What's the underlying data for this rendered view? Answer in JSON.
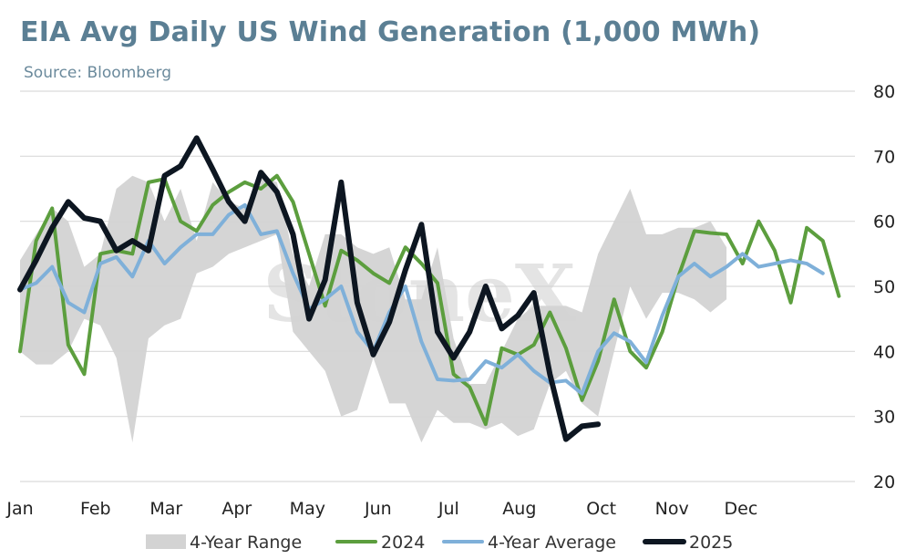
{
  "chart_data": {
    "type": "line",
    "title": "EIA Avg Daily US Wind Generation (1,000 MWh)",
    "subtitle": "Source: Bloomberg",
    "watermark": "StoneX",
    "ylim": [
      20,
      80
    ],
    "yticks": [
      20,
      30,
      40,
      50,
      60,
      70,
      80
    ],
    "y_axis_side": "right",
    "grid": true,
    "xlim": [
      1,
      53
    ],
    "month_labels": [
      {
        "label": "Jan",
        "week": 1
      },
      {
        "label": "Feb",
        "week": 5.7
      },
      {
        "label": "Mar",
        "week": 10.1
      },
      {
        "label": "Apr",
        "week": 14.5
      },
      {
        "label": "May",
        "week": 18.9
      },
      {
        "label": "Jun",
        "week": 23.3
      },
      {
        "label": "Jul",
        "week": 27.7
      },
      {
        "label": "Aug",
        "week": 32.1
      },
      {
        "label": "Oct",
        "week": 37.2
      },
      {
        "label": "Nov",
        "week": 41.6
      },
      {
        "label": "Dec",
        "week": 45.9
      }
    ],
    "colors": {
      "range": "#d3d3d3",
      "2024": "#5c9e3e",
      "avg": "#7fb0d9",
      "2025": "#0d1621",
      "grid": "#d9d9d9"
    },
    "range_series": {
      "name": "4-Year Range",
      "high": [
        54,
        58,
        62,
        60,
        53,
        55,
        65,
        67,
        66,
        60,
        65,
        57,
        66,
        63,
        62,
        67,
        66,
        55,
        50,
        58,
        58,
        56,
        55,
        56,
        48,
        48,
        56,
        42,
        35,
        35,
        40,
        45,
        47,
        47,
        47,
        46,
        55,
        60,
        65,
        58,
        58,
        59,
        59,
        60,
        56
      ],
      "low": [
        40,
        38,
        38,
        40,
        45,
        44,
        39,
        26,
        42,
        44,
        45,
        52,
        53,
        55,
        56,
        57,
        58,
        43,
        40,
        37,
        30,
        31,
        39,
        32,
        32,
        26,
        31,
        29,
        29,
        28,
        29,
        27,
        28,
        35,
        37,
        32,
        30,
        40,
        50,
        45,
        49,
        49,
        48,
        46,
        48
      ]
    },
    "series": [
      {
        "name": "2024",
        "values": [
          40,
          57,
          62,
          41,
          36.5,
          55,
          55.5,
          55,
          66,
          66.5,
          60,
          58.5,
          62.5,
          64.5,
          66,
          65,
          67,
          63,
          55,
          47,
          55.5,
          54,
          52,
          50.5,
          56,
          53.5,
          50.5,
          36.5,
          34.5,
          28.8,
          40.5,
          39.5,
          41,
          46,
          40.5,
          32.5,
          38.5,
          48,
          40,
          37.5,
          43,
          51.5,
          58.5,
          58.2,
          58,
          53.5,
          60,
          55.5,
          47.5,
          59,
          57,
          48.5
        ]
      },
      {
        "name": "4-Year Average",
        "values": [
          49.5,
          50.5,
          53,
          47.5,
          46,
          53.5,
          54.5,
          51.5,
          57,
          53.5,
          56,
          58,
          58,
          61,
          62.5,
          58,
          58.5,
          52,
          46.5,
          48,
          50,
          43,
          40,
          46,
          50,
          41.5,
          35.7,
          35.5,
          35.7,
          38.5,
          37.5,
          39.5,
          37,
          35.2,
          35.5,
          33.5,
          40,
          42.8,
          41.5,
          38.3,
          45.5,
          51.5,
          53.5,
          51.5,
          53,
          55,
          53,
          53.5,
          54,
          53.5,
          52
        ]
      },
      {
        "name": "2025",
        "values": [
          49.5,
          54,
          59,
          63,
          60.5,
          60,
          55.5,
          57,
          55.5,
          67,
          68.5,
          72.8,
          68,
          63,
          60,
          67.5,
          64.5,
          58,
          45,
          51,
          66,
          47.5,
          39.5,
          44.5,
          52.5,
          59.5,
          43,
          39,
          43,
          50,
          43.5,
          45.5,
          49,
          36.5,
          26.5,
          28.5,
          28.8
        ]
      }
    ],
    "legend": [
      {
        "label": "4-Year Range",
        "kind": "fill"
      },
      {
        "label": "2024",
        "kind": "line"
      },
      {
        "label": "4-Year Average",
        "kind": "line"
      },
      {
        "label": "2025",
        "kind": "line"
      }
    ],
    "legend_position": "bottom"
  }
}
